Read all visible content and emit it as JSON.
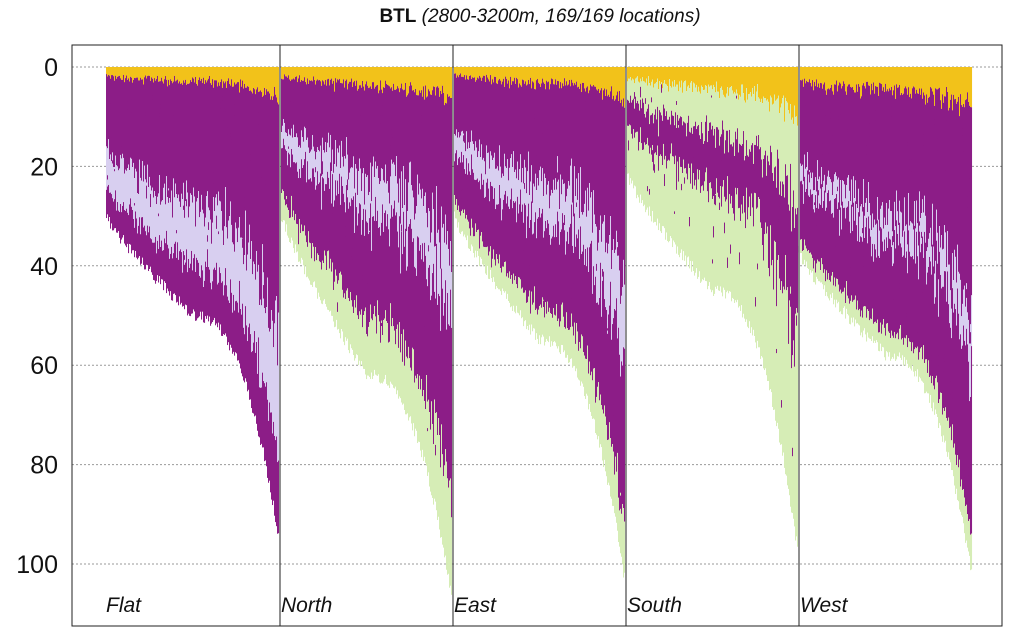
{
  "chart_data": {
    "type": "bar",
    "title": "BTL",
    "subtitle": "(2800-3200m, 169/169 locations)",
    "ylim": [
      0,
      110
    ],
    "y_reversed": true,
    "y_ticks": [
      0,
      20,
      40,
      60,
      80,
      100
    ],
    "grid": "horizontal dotted",
    "panels": [
      "Flat",
      "North",
      "East",
      "South",
      "West"
    ],
    "colors": {
      "gold": "#f2c21a",
      "purple": "#8c1d87",
      "lavender": "#d8cff0",
      "green": "#d6edb6"
    },
    "panel_profiles": [
      {
        "panel": "Flat",
        "max_depth": 94,
        "min_depth": 30,
        "depth_at_half": 50,
        "layers": [
          {
            "color": "gold",
            "mean_fraction": 0.06
          },
          {
            "color": "purple",
            "mean_fraction": 0.5
          },
          {
            "color": "lavender",
            "mean_fraction": 0.25
          },
          {
            "color": "purple",
            "mean_fraction": 0.19
          }
        ]
      },
      {
        "panel": "North",
        "max_depth": 106,
        "min_depth": 30,
        "depth_at_half": 62,
        "layers": [
          {
            "color": "gold",
            "mean_fraction": 0.06
          },
          {
            "color": "purple",
            "mean_fraction": 0.3
          },
          {
            "color": "lavender",
            "mean_fraction": 0.14
          },
          {
            "color": "purple",
            "mean_fraction": 0.32
          },
          {
            "color": "green",
            "mean_fraction": 0.18
          }
        ]
      },
      {
        "panel": "East",
        "max_depth": 103,
        "min_depth": 30,
        "depth_at_half": 55,
        "layers": [
          {
            "color": "gold",
            "mean_fraction": 0.06
          },
          {
            "color": "purple",
            "mean_fraction": 0.36
          },
          {
            "color": "lavender",
            "mean_fraction": 0.16
          },
          {
            "color": "purple",
            "mean_fraction": 0.3
          },
          {
            "color": "green",
            "mean_fraction": 0.12
          }
        ]
      },
      {
        "panel": "South",
        "max_depth": 97,
        "min_depth": 22,
        "depth_at_half": 45,
        "layers": [
          {
            "color": "gold",
            "mean_fraction": 0.1
          },
          {
            "color": "green",
            "mean_fraction": 0.2
          },
          {
            "color": "purple",
            "mean_fraction": 0.25
          },
          {
            "color": "green",
            "mean_fraction": 0.45
          }
        ]
      },
      {
        "panel": "West",
        "max_depth": 102,
        "min_depth": 38,
        "depth_at_half": 58,
        "layers": [
          {
            "color": "gold",
            "mean_fraction": 0.08
          },
          {
            "color": "purple",
            "mean_fraction": 0.42
          },
          {
            "color": "lavender",
            "mean_fraction": 0.1
          },
          {
            "color": "purple",
            "mean_fraction": 0.32
          },
          {
            "color": "green",
            "mean_fraction": 0.08
          }
        ]
      }
    ]
  }
}
